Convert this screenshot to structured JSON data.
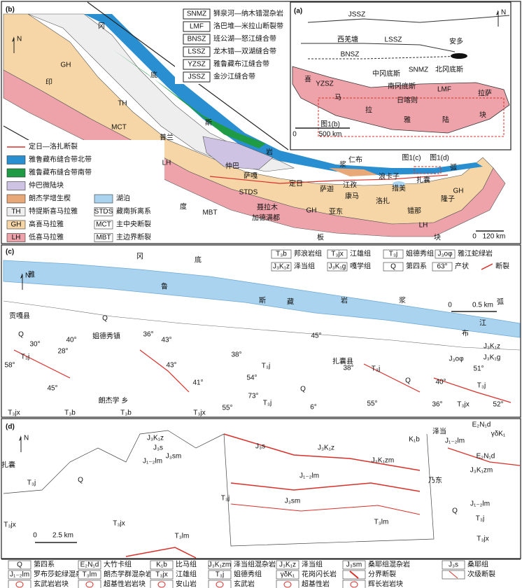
{
  "panel_a": {
    "label": "(a)",
    "north": "N",
    "texts": [
      "JSSZ",
      "西羌塘",
      "LSSZ",
      "安多",
      "BNSZ",
      "SNMZ",
      "中冈底斯",
      "北冈底斯",
      "YZSZ",
      "喜",
      "南冈底斯",
      "LMF",
      "马",
      "日喀则",
      "拉萨",
      "拉",
      "雅",
      "陆",
      "块",
      "图1(b)",
      "0",
      "500 km"
    ]
  },
  "panel_b": {
    "label": "(b)",
    "north": "N",
    "abbreviations": [
      {
        "code": "SNMZ",
        "name": "狮泉河—纳木错混杂岩"
      },
      {
        "code": "LMF",
        "name": "洛巴堆—米拉山断裂带"
      },
      {
        "code": "BNSZ",
        "name": "班公湖—怒江缝合带"
      },
      {
        "code": "LSSZ",
        "name": "龙木错—双湖缝合带"
      },
      {
        "code": "YZSZ",
        "name": "雅鲁藏布江缝合带"
      },
      {
        "code": "JSSZ",
        "name": "金沙江缝合带"
      }
    ],
    "legend": [
      {
        "name": "定日—洛扎断裂",
        "color": "#d9302a"
      },
      {
        "name": "雅鲁藏布缝合带北带",
        "color": "#2a8fd0"
      },
      {
        "name": "雅鲁藏布缝合带南带",
        "color": "#1f9a45"
      },
      {
        "name": "仲巴微陆块",
        "color": "#cfc3e3"
      },
      {
        "name": "朗杰学增生楔",
        "color": "#e9a877"
      },
      {
        "code": "TH",
        "name": "特提斯喜马拉雅",
        "color": "#eeeeee"
      },
      {
        "code": "GH",
        "name": "高喜马拉雅",
        "color": "#f6d6a6"
      },
      {
        "code": "LH",
        "name": "低喜马拉雅",
        "color": "#eea3aa"
      },
      {
        "name": "湖泊",
        "color": "#a9d3ee"
      },
      {
        "code": "STDS",
        "name": "藏南拆离系"
      },
      {
        "code": "MCT",
        "name": "主中央断裂"
      },
      {
        "code": "MBT",
        "name": "主边界断裂"
      }
    ],
    "texts": [
      "冈",
      "底",
      "斯",
      "岩",
      "浆",
      "弧",
      "印",
      "度",
      "板",
      "块",
      "GH",
      "TH",
      "MCT",
      "LH",
      "普兰",
      "仲巴",
      "萨嘎",
      "STDS",
      "定日",
      "萨迦",
      "江孜",
      "康马",
      "仁布",
      "浪卡子",
      "扎囊",
      "措美",
      "洛扎",
      "隆子",
      "GH",
      "错那",
      "亚东",
      "GH",
      "LH",
      "聂拉木",
      "加德满都",
      "MBT",
      "图1(c)",
      "图1(d)",
      "0",
      "120 km"
    ]
  },
  "panel_c": {
    "label": "(c)",
    "north": "N",
    "legend": [
      {
        "code": "T₃b",
        "name": "邦浪岩组"
      },
      {
        "code": "T₃jx",
        "name": "江雄组"
      },
      {
        "code": "T₃j",
        "name": "姐德秀组"
      },
      {
        "code": "J₃oφ",
        "name": "雅江蛇绿岩"
      },
      {
        "code": "J₃K₁z",
        "name": "泽当组"
      },
      {
        "code": "J₃K₁g",
        "name": "嘎学组"
      },
      {
        "code": "Q",
        "name": "第四系"
      },
      {
        "code": "63°",
        "name": "产状"
      },
      {
        "name": "断裂"
      }
    ],
    "texts": [
      "冈",
      "底",
      "雅",
      "鲁",
      "Q",
      "斯",
      "藏",
      "岩",
      "浆",
      "弧",
      "江",
      "布",
      "贡嘎县",
      "Q",
      "姐德秀镇",
      "0",
      "0.5 km",
      "40°",
      "36°",
      "43°",
      "45°",
      "38°",
      "T₃j",
      "30°",
      "28°",
      "43°",
      "38°",
      "54°",
      "T₃j",
      "扎囊县",
      "T₃j",
      "Q",
      "J₃oφ",
      "J₃K₁z",
      "J₃K₁g",
      "51°",
      "T₃j",
      "40°",
      "58°",
      "41°",
      "45°",
      "73°",
      "T₃j",
      "Q",
      "55°",
      "55°",
      "6°",
      "36°",
      "朗杰学 乡",
      "T₃jx",
      "T₃b",
      "T₃b",
      "T₃jx",
      "T₃jx",
      "52°"
    ]
  },
  "panel_d": {
    "label": "(d)",
    "north": "N",
    "texts": [
      "扎囊",
      "T₃j",
      "Q",
      "J₃K₁z",
      "J₃s",
      "J₃sm",
      "J₁₋₂lm",
      "T₃j",
      "T₃jx",
      "T₃jx",
      "T₃lm",
      "J₃s",
      "J₃K₁z",
      "J₃K₁zm",
      "J₁₋₂lm",
      "J₃sm",
      "T₃lm",
      "K₁b",
      "E₂N₁d",
      "γδK₁",
      "泽当",
      "J₁₋₂lm",
      "E₂N₁d",
      "J₃K₁zm",
      "乃东",
      "Q",
      "J₁₋₂lm",
      "T₃j",
      "T₃jx",
      "0",
      "2.5 km"
    ]
  },
  "legend": [
    [
      {
        "code": "Q",
        "name": "第四系"
      },
      {
        "code": "E₂N₁d",
        "name": "大竹卡组"
      },
      {
        "code": "K₁b",
        "name": "比马组"
      },
      {
        "code": "J₃K₁zm",
        "name": "泽当组混杂岩"
      },
      {
        "code": "J₃K₁z",
        "name": "泽当组"
      },
      {
        "code": "J₃sm",
        "name": "桑耶组混杂岩"
      },
      {
        "code": "J₃s",
        "name": "桑耶组"
      }
    ],
    [
      {
        "code": "J₁₋₂lm",
        "name": "罗布莎蛇绿混杂岩"
      },
      {
        "code": "T₃lm",
        "name": "朗杰学群混杂岩"
      },
      {
        "code": "T₃jx",
        "name": "江雄组"
      },
      {
        "code": "T₃j",
        "name": "姐德秀组"
      },
      {
        "code": "γδK₁",
        "name": "花岗闪长岩"
      },
      {
        "name": "分界断裂"
      },
      {
        "name": "次级断裂"
      }
    ],
    [
      {
        "name": "玄武岩岩块"
      },
      {
        "name": "超基性岩岩块"
      },
      {
        "name": "安山岩"
      },
      {
        "name": "玄武岩"
      },
      {
        "name": "超基性岩"
      },
      {
        "name": "辉长岩岩块"
      }
    ]
  ]
}
